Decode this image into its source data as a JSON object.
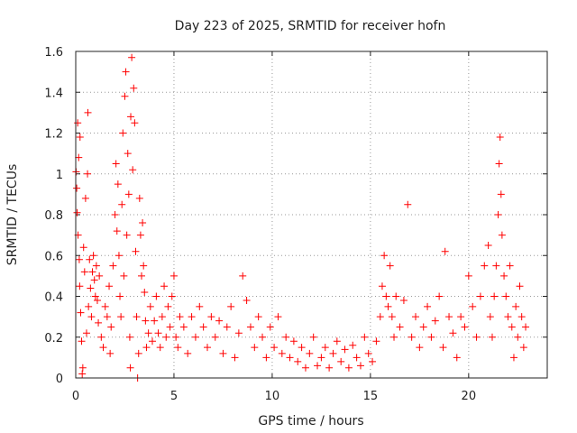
{
  "chart_data": {
    "type": "scatter",
    "title": "Day 223 of 2025, SRMTID for receiver hofn",
    "xlabel": "GPS time / hours",
    "ylabel": "SRMTID / TECUs",
    "xlim": [
      0,
      24
    ],
    "ylim": [
      0,
      1.6
    ],
    "xticks": [
      0,
      5,
      10,
      15,
      20
    ],
    "xtick_labels": [
      "0",
      "5",
      "10",
      "15",
      "20"
    ],
    "yticks": [
      0,
      0.2,
      0.4,
      0.6,
      0.8,
      1.0,
      1.2,
      1.4,
      1.6
    ],
    "ytick_labels": [
      "0",
      "0.2",
      "0.4",
      "0.6",
      "0.8",
      "1",
      "1.2",
      "1.4",
      "1.6"
    ],
    "grid": true,
    "marker": "plus",
    "series": [
      {
        "name": "SRMTID",
        "color": "#ff0000",
        "points": [
          [
            0.02,
            1.01
          ],
          [
            0.05,
            0.93
          ],
          [
            0.07,
            0.81
          ],
          [
            0.1,
            1.25
          ],
          [
            0.12,
            0.7
          ],
          [
            0.15,
            1.08
          ],
          [
            0.18,
            0.58
          ],
          [
            0.2,
            0.45
          ],
          [
            0.22,
            1.18
          ],
          [
            0.25,
            0.32
          ],
          [
            0.3,
            0.18
          ],
          [
            0.33,
            0.02
          ],
          [
            0.36,
            0.05
          ],
          [
            0.4,
            0.64
          ],
          [
            0.45,
            0.52
          ],
          [
            0.5,
            0.88
          ],
          [
            0.55,
            0.22
          ],
          [
            0.6,
            1.0
          ],
          [
            0.62,
            1.3
          ],
          [
            0.65,
            0.35
          ],
          [
            0.7,
            0.58
          ],
          [
            0.75,
            0.44
          ],
          [
            0.8,
            0.3
          ],
          [
            0.85,
            0.52
          ],
          [
            0.9,
            0.6
          ],
          [
            0.95,
            0.48
          ],
          [
            1.0,
            0.4
          ],
          [
            1.05,
            0.55
          ],
          [
            1.1,
            0.38
          ],
          [
            1.15,
            0.27
          ],
          [
            1.2,
            0.5
          ],
          [
            1.3,
            0.2
          ],
          [
            1.4,
            0.15
          ],
          [
            1.5,
            0.35
          ],
          [
            1.6,
            0.3
          ],
          [
            1.7,
            0.45
          ],
          [
            1.75,
            0.12
          ],
          [
            1.8,
            0.25
          ],
          [
            1.9,
            0.55
          ],
          [
            2.0,
            0.8
          ],
          [
            2.05,
            1.05
          ],
          [
            2.1,
            0.72
          ],
          [
            2.15,
            0.95
          ],
          [
            2.2,
            0.6
          ],
          [
            2.25,
            0.4
          ],
          [
            2.3,
            0.3
          ],
          [
            2.35,
            0.85
          ],
          [
            2.4,
            1.2
          ],
          [
            2.45,
            0.5
          ],
          [
            2.5,
            1.38
          ],
          [
            2.55,
            1.5
          ],
          [
            2.6,
            0.7
          ],
          [
            2.65,
            1.1
          ],
          [
            2.7,
            0.9
          ],
          [
            2.75,
            0.2
          ],
          [
            2.78,
            0.05
          ],
          [
            2.8,
            1.28
          ],
          [
            2.85,
            1.57
          ],
          [
            2.9,
            1.02
          ],
          [
            2.95,
            1.42
          ],
          [
            3.0,
            1.25
          ],
          [
            3.05,
            0.62
          ],
          [
            3.1,
            0.3
          ],
          [
            3.15,
            0.0
          ],
          [
            3.2,
            0.12
          ],
          [
            3.25,
            0.88
          ],
          [
            3.3,
            0.7
          ],
          [
            3.35,
            0.5
          ],
          [
            3.4,
            0.76
          ],
          [
            3.45,
            0.55
          ],
          [
            3.5,
            0.42
          ],
          [
            3.55,
            0.28
          ],
          [
            3.6,
            0.15
          ],
          [
            3.7,
            0.22
          ],
          [
            3.8,
            0.35
          ],
          [
            3.9,
            0.18
          ],
          [
            4.0,
            0.28
          ],
          [
            4.1,
            0.4
          ],
          [
            4.2,
            0.22
          ],
          [
            4.3,
            0.15
          ],
          [
            4.4,
            0.3
          ],
          [
            4.5,
            0.45
          ],
          [
            4.6,
            0.2
          ],
          [
            4.7,
            0.35
          ],
          [
            4.8,
            0.25
          ],
          [
            4.9,
            0.4
          ],
          [
            5.0,
            0.5
          ],
          [
            5.1,
            0.2
          ],
          [
            5.2,
            0.15
          ],
          [
            5.3,
            0.3
          ],
          [
            5.5,
            0.25
          ],
          [
            5.7,
            0.12
          ],
          [
            5.9,
            0.3
          ],
          [
            6.1,
            0.2
          ],
          [
            6.3,
            0.35
          ],
          [
            6.5,
            0.25
          ],
          [
            6.7,
            0.15
          ],
          [
            6.9,
            0.3
          ],
          [
            7.1,
            0.2
          ],
          [
            7.3,
            0.28
          ],
          [
            7.5,
            0.12
          ],
          [
            7.7,
            0.25
          ],
          [
            7.9,
            0.35
          ],
          [
            8.1,
            0.1
          ],
          [
            8.3,
            0.22
          ],
          [
            8.5,
            0.5
          ],
          [
            8.7,
            0.38
          ],
          [
            8.9,
            0.25
          ],
          [
            9.1,
            0.15
          ],
          [
            9.3,
            0.3
          ],
          [
            9.5,
            0.2
          ],
          [
            9.7,
            0.1
          ],
          [
            9.9,
            0.25
          ],
          [
            10.1,
            0.15
          ],
          [
            10.3,
            0.3
          ],
          [
            10.5,
            0.12
          ],
          [
            10.7,
            0.2
          ],
          [
            10.9,
            0.1
          ],
          [
            11.1,
            0.18
          ],
          [
            11.3,
            0.08
          ],
          [
            11.5,
            0.15
          ],
          [
            11.7,
            0.05
          ],
          [
            11.9,
            0.12
          ],
          [
            12.1,
            0.2
          ],
          [
            12.3,
            0.06
          ],
          [
            12.5,
            0.1
          ],
          [
            12.7,
            0.15
          ],
          [
            12.9,
            0.05
          ],
          [
            13.1,
            0.12
          ],
          [
            13.3,
            0.18
          ],
          [
            13.5,
            0.08
          ],
          [
            13.7,
            0.14
          ],
          [
            13.9,
            0.05
          ],
          [
            14.1,
            0.16
          ],
          [
            14.3,
            0.1
          ],
          [
            14.5,
            0.06
          ],
          [
            14.7,
            0.2
          ],
          [
            14.9,
            0.12
          ],
          [
            15.1,
            0.08
          ],
          [
            15.3,
            0.18
          ],
          [
            15.5,
            0.3
          ],
          [
            15.6,
            0.45
          ],
          [
            15.7,
            0.6
          ],
          [
            15.8,
            0.4
          ],
          [
            15.9,
            0.35
          ],
          [
            16.0,
            0.55
          ],
          [
            16.1,
            0.3
          ],
          [
            16.2,
            0.2
          ],
          [
            16.3,
            0.4
          ],
          [
            16.5,
            0.25
          ],
          [
            16.7,
            0.38
          ],
          [
            16.9,
            0.85
          ],
          [
            17.1,
            0.2
          ],
          [
            17.3,
            0.3
          ],
          [
            17.5,
            0.15
          ],
          [
            17.7,
            0.25
          ],
          [
            17.9,
            0.35
          ],
          [
            18.1,
            0.2
          ],
          [
            18.3,
            0.28
          ],
          [
            18.5,
            0.4
          ],
          [
            18.7,
            0.15
          ],
          [
            18.8,
            0.62
          ],
          [
            19.0,
            0.3
          ],
          [
            19.2,
            0.22
          ],
          [
            19.4,
            0.1
          ],
          [
            19.6,
            0.3
          ],
          [
            19.8,
            0.25
          ],
          [
            20.0,
            0.5
          ],
          [
            20.2,
            0.35
          ],
          [
            20.4,
            0.2
          ],
          [
            20.6,
            0.4
          ],
          [
            20.8,
            0.55
          ],
          [
            21.0,
            0.65
          ],
          [
            21.1,
            0.3
          ],
          [
            21.2,
            0.2
          ],
          [
            21.3,
            0.4
          ],
          [
            21.4,
            0.55
          ],
          [
            21.5,
            0.8
          ],
          [
            21.55,
            1.05
          ],
          [
            21.6,
            1.18
          ],
          [
            21.65,
            0.9
          ],
          [
            21.7,
            0.7
          ],
          [
            21.8,
            0.5
          ],
          [
            21.9,
            0.4
          ],
          [
            22.0,
            0.3
          ],
          [
            22.1,
            0.55
          ],
          [
            22.2,
            0.25
          ],
          [
            22.3,
            0.1
          ],
          [
            22.4,
            0.35
          ],
          [
            22.5,
            0.2
          ],
          [
            22.6,
            0.45
          ],
          [
            22.7,
            0.3
          ],
          [
            22.8,
            0.15
          ],
          [
            22.9,
            0.25
          ]
        ]
      }
    ]
  }
}
